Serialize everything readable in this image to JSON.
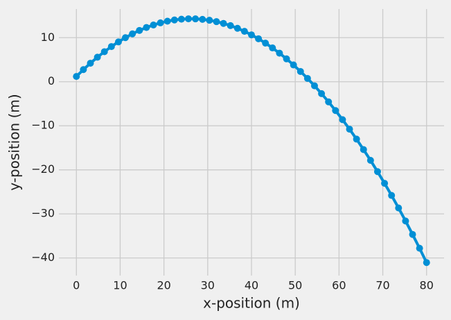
{
  "chart_data": {
    "type": "line",
    "xlabel": "x-position (m)",
    "ylabel": "y-position (m)",
    "x": [
      0,
      1.6,
      3.2,
      4.8,
      6.4,
      8,
      9.6,
      11.2,
      12.8,
      14.4,
      16,
      17.6,
      19.2,
      20.8,
      22.4,
      24,
      25.6,
      27.2,
      28.8,
      30.4,
      32,
      33.6,
      35.2,
      36.8,
      38.4,
      40,
      41.6,
      43.2,
      44.8,
      46.4,
      48,
      49.6,
      51.2,
      52.8,
      54.4,
      56,
      57.6,
      59.2,
      60.8,
      62.4,
      64,
      65.6,
      67.2,
      68.8,
      70.4,
      72,
      73.6,
      75.2,
      76.8,
      78.4,
      80
    ],
    "values": [
      1.2,
      2.75,
      4.2,
      5.56,
      6.82,
      7.98,
      9.04,
      10.0,
      10.87,
      11.64,
      12.31,
      12.88,
      13.36,
      13.74,
      14.02,
      14.2,
      14.28,
      14.27,
      14.16,
      13.95,
      13.64,
      13.24,
      12.74,
      12.13,
      11.44,
      10.64,
      9.75,
      8.76,
      7.67,
      6.48,
      5.19,
      3.81,
      2.33,
      0.75,
      -0.92,
      -2.7,
      -4.57,
      -6.54,
      -8.61,
      -10.77,
      -13.03,
      -15.4,
      -17.85,
      -20.41,
      -23.06,
      -25.81,
      -28.66,
      -31.61,
      -34.66,
      -37.8,
      -41.04
    ],
    "color": "#008fd5",
    "marker": true,
    "xlim": [
      -4,
      84
    ],
    "xticks": [
      0,
      10,
      20,
      30,
      40,
      50,
      60,
      70,
      80
    ],
    "ylim": [
      -44,
      16.5
    ],
    "yticks": [
      {
        "value": -40,
        "label": "−40"
      },
      {
        "value": -30,
        "label": "−30"
      },
      {
        "value": -20,
        "label": "−20"
      },
      {
        "value": -10,
        "label": "−10"
      },
      0,
      10
    ],
    "grid": true
  }
}
